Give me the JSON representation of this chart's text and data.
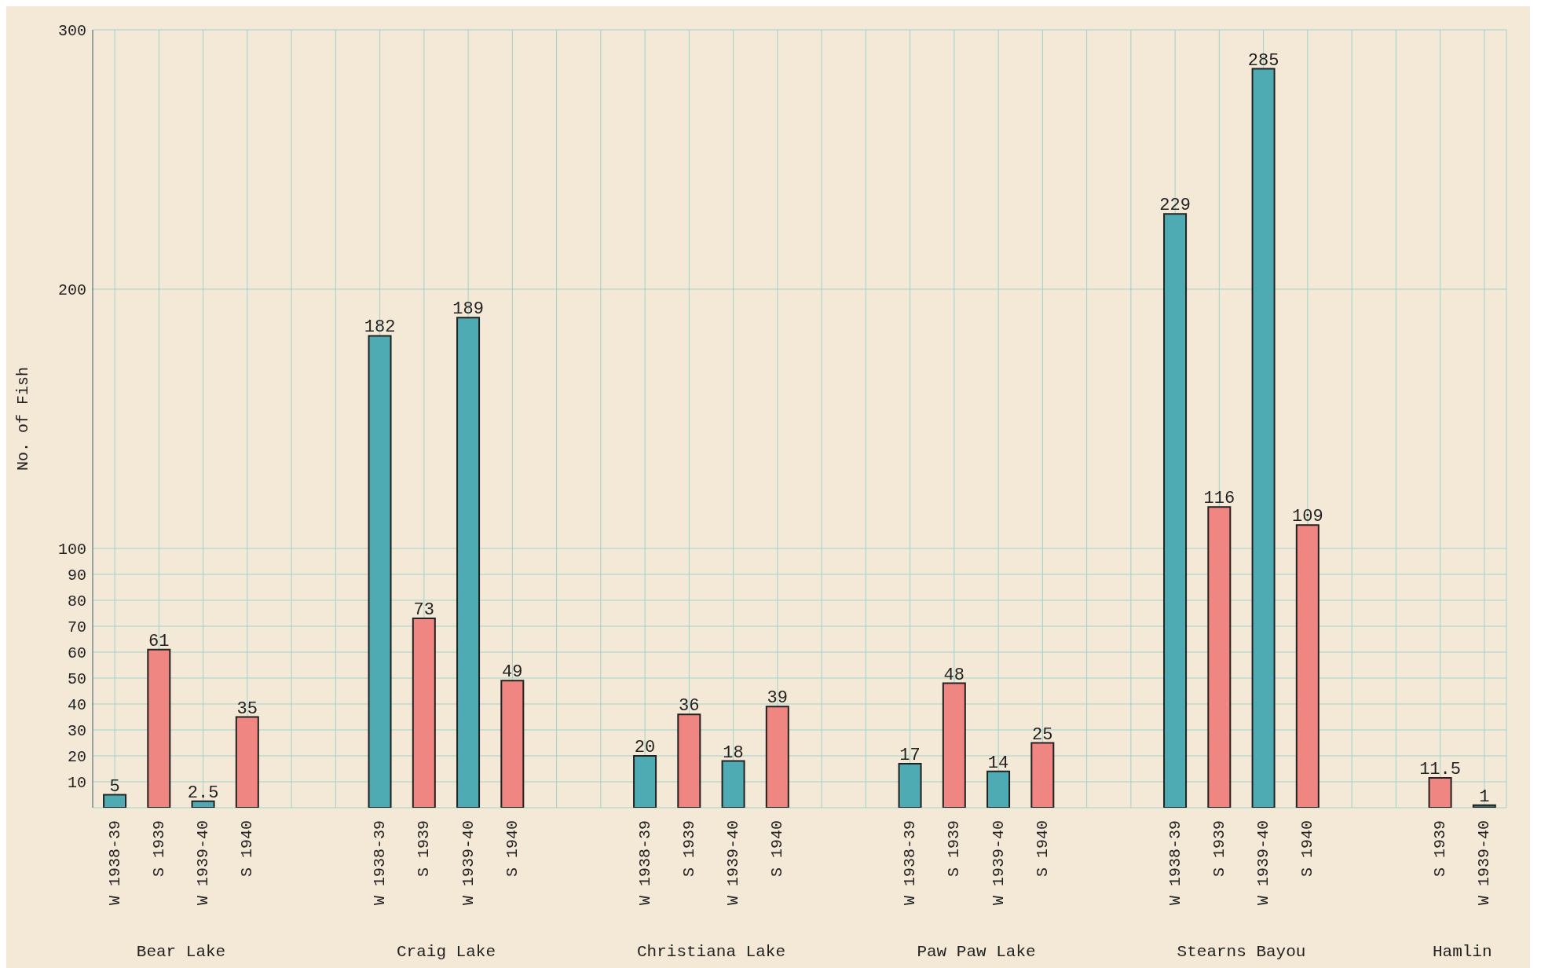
{
  "chart_data": {
    "type": "bar",
    "ylabel": "No. of Fish",
    "categories": [
      "W 1938-39",
      "S 1939",
      "W 1939-40",
      "S 1940",
      null,
      null,
      "W 1938-39",
      "S 1939",
      "W 1939-40",
      "S 1940",
      null,
      null,
      "W 1938-39",
      "S 1939",
      "W 1939-40",
      "S 1940",
      null,
      null,
      "W 1938-39",
      "S 1939",
      "W 1939-40",
      "S 1940",
      null,
      null,
      "W 1938-39",
      "S 1939",
      "W 1939-40",
      "S 1940",
      null,
      null,
      "S 1939",
      "W 1939-40"
    ],
    "values": [
      5,
      61,
      2.5,
      35,
      null,
      null,
      182,
      73,
      189,
      49,
      null,
      null,
      20,
      36,
      18,
      39,
      null,
      null,
      17,
      48,
      14,
      25,
      null,
      null,
      229,
      116,
      285,
      109,
      null,
      null,
      11.5,
      1
    ],
    "colors": [
      "#4fabb3",
      "#f08682",
      "#4fabb3",
      "#f08682",
      null,
      null,
      "#4fabb3",
      "#f08682",
      "#4fabb3",
      "#f08682",
      null,
      null,
      "#4fabb3",
      "#f08682",
      "#4fabb3",
      "#f08682",
      null,
      null,
      "#4fabb3",
      "#f08682",
      "#4fabb3",
      "#f08682",
      null,
      null,
      "#4fabb3",
      "#f08682",
      "#4fabb3",
      "#f08682",
      null,
      null,
      "#f08682",
      "#2f6f73"
    ],
    "ylim": [
      0,
      300
    ],
    "yticks": [
      10,
      20,
      30,
      40,
      50,
      60,
      70,
      80,
      90,
      100,
      200,
      300
    ],
    "grid": true,
    "data_labels": true,
    "annotations": [
      "Bear Lake",
      "Craig Lake",
      "Christiana Lake",
      "Paw Paw Lake",
      "Stearns Bayou",
      "Hamlin"
    ]
  }
}
